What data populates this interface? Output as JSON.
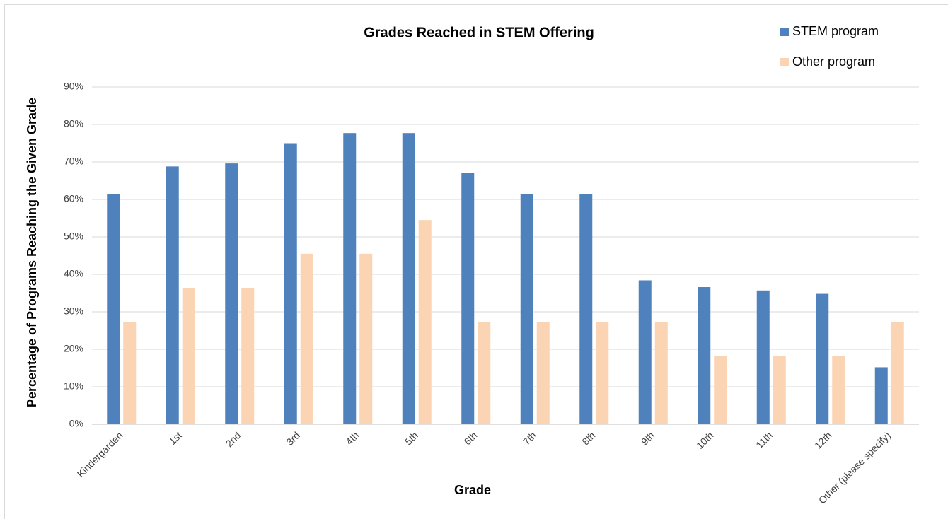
{
  "chart_data": {
    "type": "bar",
    "title": "Grades Reached in STEM Offering",
    "x_label": "Grade",
    "y_label": "Percentage of Programs Reaching the Given Grade",
    "categories": [
      "Kindergarden",
      "1st",
      "2nd",
      "3rd",
      "4th",
      "5th",
      "6th",
      "7th",
      "8th",
      "9th",
      "10th",
      "11th",
      "12th",
      "Other (please specify)"
    ],
    "series": [
      {
        "name": "STEM program",
        "color": "#4f81bd",
        "values": [
          61.5,
          68.8,
          69.6,
          75,
          77.7,
          77.7,
          67,
          61.5,
          61.5,
          38.4,
          36.6,
          35.7,
          34.8,
          15.2
        ]
      },
      {
        "name": "Other program",
        "color": "#fbd4b4",
        "values": [
          27.3,
          36.4,
          36.4,
          45.5,
          45.5,
          54.5,
          27.3,
          27.3,
          27.3,
          27.3,
          18.2,
          18.2,
          18.2,
          27.3
        ]
      }
    ],
    "ylim": [
      0,
      90
    ],
    "yticks": [
      {
        "value": 0,
        "label": "0%"
      },
      {
        "value": 10,
        "label": "10%"
      },
      {
        "value": 20,
        "label": "20%"
      },
      {
        "value": 30,
        "label": "30%"
      },
      {
        "value": 40,
        "label": "40%"
      },
      {
        "value": 50,
        "label": "50%"
      },
      {
        "value": 60,
        "label": "60%"
      },
      {
        "value": 70,
        "label": "70%"
      },
      {
        "value": 80,
        "label": "80%"
      },
      {
        "value": 90,
        "label": "90%"
      }
    ],
    "grid": true,
    "legend": "top-right"
  }
}
